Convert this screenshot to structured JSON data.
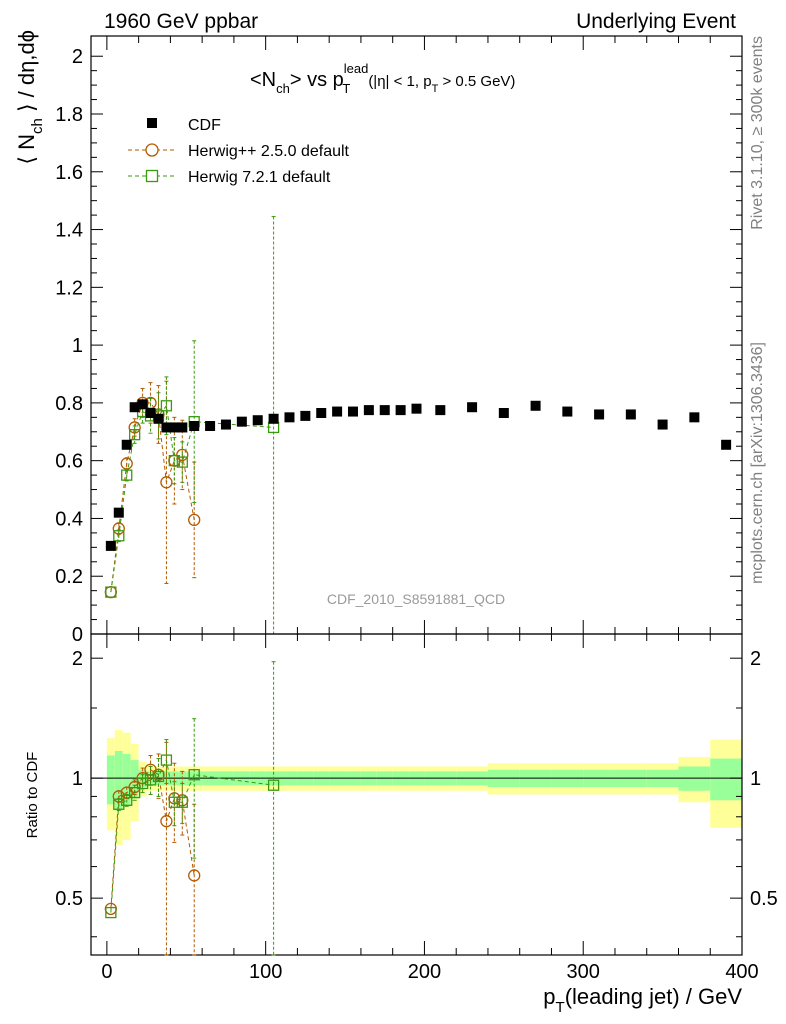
{
  "header": {
    "left": "1960 GeV ppbar",
    "right": "Underlying Event"
  },
  "side_labels": {
    "rivet": "Rivet 3.1.10, ≥ 300k events",
    "mcplots": "mcplots.cern.ch [arXiv:1306.3436]"
  },
  "watermark": "CDF_2010_S8591881_QCD",
  "colors": {
    "cdf": "#000000",
    "herwigpp": "#b35900",
    "herwig7": "#3a9a0f",
    "band_inner": "#99ff99",
    "band_outer": "#ffff99"
  },
  "chart_data": [
    {
      "type": "scatter",
      "title_parts": {
        "n": "<N",
        "ch": "ch",
        "vs": "> vs p",
        "lead": "lead",
        "T": "T",
        "cut_a": "(|η| < 1, p",
        "cut_T": "T",
        "cut_b": " > 0.5 GeV)"
      },
      "ylabel_parts": {
        "pre": "⟨ N",
        "sub": "ch",
        "post": " ⟩ / dη,dϕ"
      },
      "xlim": [
        -10,
        400
      ],
      "ylim": [
        0,
        2.07
      ],
      "y_ticks": [
        0,
        0.2,
        0.4,
        0.6,
        0.8,
        1,
        1.2,
        1.4,
        1.6,
        1.8,
        2
      ],
      "y_tick_labels": [
        "0",
        "0.2",
        "0.4",
        "0.6",
        "0.8",
        "1",
        "1.2",
        "1.4",
        "1.6",
        "1.8",
        "2"
      ],
      "legend": [
        "CDF",
        "Herwig++ 2.5.0 default",
        "Herwig 7.2.1 default"
      ],
      "series": [
        {
          "name": "CDF",
          "marker": "filled-square",
          "x": [
            2.5,
            7.5,
            12.5,
            17.5,
            22.5,
            27.5,
            32.5,
            37.5,
            42.5,
            47.5,
            55,
            65,
            75,
            85,
            95,
            105,
            115,
            125,
            135,
            145,
            155,
            165,
            175,
            185,
            195,
            210,
            230,
            250,
            270,
            290,
            310,
            330,
            350,
            370,
            390
          ],
          "y": [
            0.305,
            0.42,
            0.655,
            0.785,
            0.795,
            0.765,
            0.745,
            0.715,
            0.715,
            0.715,
            0.72,
            0.72,
            0.725,
            0.735,
            0.74,
            0.745,
            0.75,
            0.755,
            0.765,
            0.77,
            0.77,
            0.775,
            0.775,
            0.775,
            0.78,
            0.775,
            0.785,
            0.765,
            0.79,
            0.77,
            0.76,
            0.76,
            0.725,
            0.75,
            0.655
          ]
        },
        {
          "name": "Herwig++ 2.5.0 default",
          "marker": "open-circle",
          "x": [
            2.5,
            7.5,
            12.5,
            17.5,
            22.5,
            27.5,
            32.5,
            37.5,
            42.5,
            47.5,
            55
          ],
          "y": [
            0.145,
            0.365,
            0.59,
            0.715,
            0.8,
            0.8,
            0.76,
            0.525,
            0.6,
            0.62,
            0.395
          ],
          "err": [
            0.0,
            0.02,
            0.02,
            0.03,
            0.05,
            0.07,
            0.1,
            0.35,
            0.15,
            0.12,
            0.2
          ]
        },
        {
          "name": "Herwig 7.2.1 default",
          "marker": "open-square",
          "x": [
            2.5,
            7.5,
            12.5,
            17.5,
            22.5,
            27.5,
            32.5,
            37.5,
            42.5,
            47.5,
            55,
            105
          ],
          "y": [
            0.145,
            0.34,
            0.55,
            0.69,
            0.77,
            0.755,
            0.755,
            0.79,
            0.6,
            0.595,
            0.735,
            0.715
          ],
          "err": [
            0.0,
            0.02,
            0.02,
            0.03,
            0.04,
            0.06,
            0.08,
            0.1,
            0.08,
            0.07,
            0.28,
            0.73
          ]
        }
      ]
    },
    {
      "type": "scatter",
      "title": "ratio",
      "ylabel": "Ratio to CDF",
      "xlabel_parts": {
        "p": "p",
        "T": "T",
        "rest": "(leading jet) / GeV"
      },
      "xlim": [
        -10,
        400
      ],
      "ylim": [
        0.36,
        2.3
      ],
      "log_y": true,
      "x_ticks": [
        0,
        100,
        200,
        300,
        400
      ],
      "x_tick_labels": [
        "0",
        "100",
        "200",
        "300",
        "400"
      ],
      "y_ticks": [
        0.5,
        1,
        2
      ],
      "y_tick_labels": [
        "0.5",
        "1",
        "2"
      ],
      "band": {
        "x_edges": [
          0,
          5,
          10,
          15,
          20,
          25,
          30,
          35,
          40,
          45,
          50,
          60,
          70,
          80,
          90,
          100,
          110,
          120,
          130,
          140,
          150,
          160,
          170,
          180,
          190,
          200,
          220,
          240,
          260,
          280,
          300,
          320,
          340,
          360,
          380,
          400
        ],
        "inner": [
          0.14,
          0.17,
          0.15,
          0.11,
          0.05,
          0.04,
          0.04,
          0.04,
          0.04,
          0.04,
          0.04,
          0.04,
          0.04,
          0.04,
          0.04,
          0.04,
          0.04,
          0.04,
          0.04,
          0.04,
          0.04,
          0.04,
          0.04,
          0.04,
          0.04,
          0.04,
          0.04,
          0.05,
          0.05,
          0.05,
          0.05,
          0.05,
          0.05,
          0.07,
          0.12
        ],
        "outer": [
          0.26,
          0.32,
          0.3,
          0.22,
          0.1,
          0.07,
          0.07,
          0.07,
          0.07,
          0.07,
          0.07,
          0.07,
          0.07,
          0.07,
          0.07,
          0.07,
          0.07,
          0.07,
          0.07,
          0.07,
          0.07,
          0.07,
          0.07,
          0.07,
          0.07,
          0.07,
          0.07,
          0.09,
          0.09,
          0.09,
          0.09,
          0.09,
          0.09,
          0.13,
          0.25
        ]
      },
      "series": [
        {
          "name": "Herwig++ 2.5.0 default",
          "marker": "open-circle",
          "x": [
            2.5,
            7.5,
            12.5,
            17.5,
            22.5,
            27.5,
            32.5,
            37.5,
            42.5,
            47.5,
            55
          ],
          "y": [
            0.47,
            0.9,
            0.92,
            0.95,
            1.0,
            1.05,
            1.02,
            0.78,
            0.89,
            0.88,
            0.57
          ],
          "err": [
            0.0,
            0.03,
            0.03,
            0.04,
            0.06,
            0.09,
            0.13,
            0.45,
            0.2,
            0.16,
            0.29
          ]
        },
        {
          "name": "Herwig 7.2.1 default",
          "marker": "open-square",
          "x": [
            2.5,
            7.5,
            12.5,
            17.5,
            22.5,
            27.5,
            32.5,
            37.5,
            42.5,
            47.5,
            55,
            105
          ],
          "y": [
            0.46,
            0.86,
            0.88,
            0.92,
            0.97,
            0.99,
            1.01,
            1.11,
            0.87,
            0.87,
            1.02,
            0.96
          ],
          "err": [
            0.0,
            0.03,
            0.03,
            0.04,
            0.05,
            0.08,
            0.11,
            0.14,
            0.11,
            0.1,
            0.39,
            1.0
          ]
        }
      ]
    }
  ]
}
